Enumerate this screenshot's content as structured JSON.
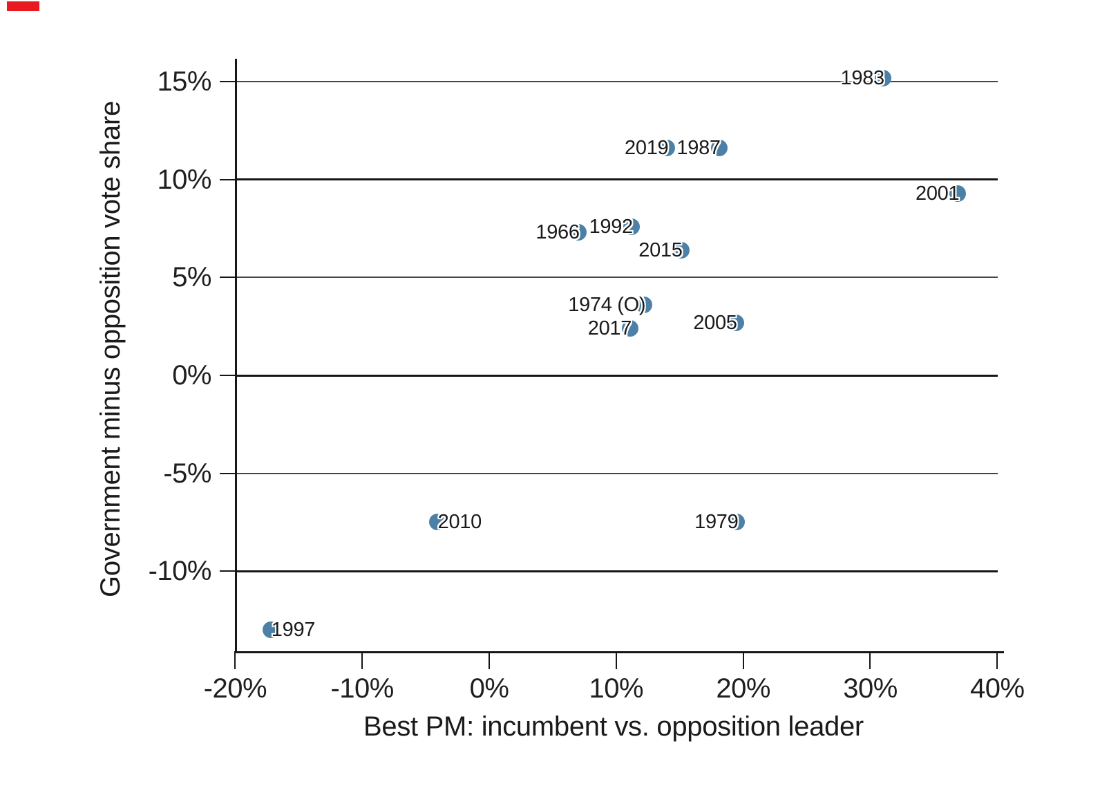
{
  "chart_data": {
    "type": "scatter",
    "title": "",
    "xlabel": "Best PM: incumbent vs. opposition leader",
    "ylabel": "Government minus opposition vote share",
    "x_tick_labels": [
      "-20%",
      "-10%",
      "0%",
      "10%",
      "20%",
      "30%",
      "40%"
    ],
    "x_tick_values": [
      -20,
      -10,
      0,
      10,
      20,
      30,
      40
    ],
    "y_tick_labels": [
      "15%",
      "10%",
      "5%",
      "0%",
      "-5%",
      "-10%"
    ],
    "y_tick_values": [
      15,
      10,
      5,
      0,
      -5,
      -10
    ],
    "xlim": [
      -20,
      40.3
    ],
    "ylim": [
      -14.1,
      16.2
    ],
    "grid": "horizontal gridlines at every 5%, heavier lines at multiples of 10%",
    "legend": "none",
    "point_color": "#4d80a6",
    "point_radius_px": 12,
    "points": [
      {
        "label": "1983",
        "x": 31.0,
        "y": 15.2,
        "label_side": "left"
      },
      {
        "label": "2019",
        "x": 14.0,
        "y": 11.6,
        "label_side": "left"
      },
      {
        "label": "1987",
        "x": 18.1,
        "y": 11.6,
        "label_side": "left"
      },
      {
        "label": "2001",
        "x": 36.9,
        "y": 9.3,
        "label_side": "left"
      },
      {
        "label": "1966",
        "x": 7.0,
        "y": 7.3,
        "label_side": "left"
      },
      {
        "label": "1992",
        "x": 11.2,
        "y": 7.6,
        "label_side": "left"
      },
      {
        "label": "2015",
        "x": 15.1,
        "y": 6.4,
        "label_side": "left"
      },
      {
        "label": "1974 (O)",
        "x": 12.2,
        "y": 3.6,
        "label_side": "left"
      },
      {
        "label": "2017",
        "x": 11.1,
        "y": 2.4,
        "label_side": "left"
      },
      {
        "label": "2005",
        "x": 19.4,
        "y": 2.7,
        "label_side": "left"
      },
      {
        "label": "2010",
        "x": -4.1,
        "y": -7.5,
        "label_side": "right"
      },
      {
        "label": "1979",
        "x": 19.5,
        "y": -7.5,
        "label_side": "left"
      },
      {
        "label": "1997",
        "x": -17.2,
        "y": -13.0,
        "label_side": "right"
      }
    ]
  }
}
